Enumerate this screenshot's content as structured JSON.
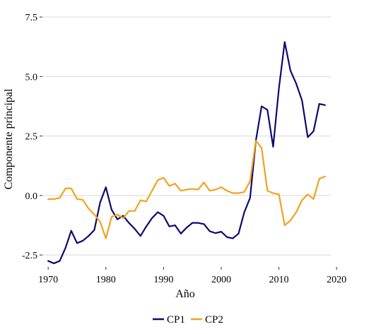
{
  "chart_data": {
    "type": "line",
    "title": "",
    "xlabel": "Año",
    "ylabel": "Componente principal",
    "xlim": [
      1969,
      2019
    ],
    "ylim": [
      -3.0,
      7.8
    ],
    "xticks": [
      1970,
      1980,
      1990,
      2000,
      2010,
      2020
    ],
    "yticks": [
      -2.5,
      0.0,
      2.5,
      5.0,
      7.5
    ],
    "ytick_labels": [
      "-2.5",
      "0.0",
      "2.5",
      "5.0",
      "7.5"
    ],
    "grid": "horizontal",
    "legend_position": "bottom",
    "x": [
      1970,
      1971,
      1972,
      1973,
      1974,
      1975,
      1976,
      1977,
      1978,
      1979,
      1980,
      1981,
      1982,
      1983,
      1984,
      1985,
      1986,
      1987,
      1988,
      1989,
      1990,
      1991,
      1992,
      1993,
      1994,
      1995,
      1996,
      1997,
      1998,
      1999,
      2000,
      2001,
      2002,
      2003,
      2004,
      2005,
      2006,
      2007,
      2008,
      2009,
      2010,
      2011,
      2012,
      2013,
      2014,
      2015,
      2016,
      2017,
      2018
    ],
    "series": [
      {
        "name": "CP1",
        "color": "#0d0a6e",
        "values": [
          -2.75,
          -2.85,
          -2.75,
          -2.2,
          -1.48,
          -2.0,
          -1.9,
          -1.7,
          -1.45,
          -0.3,
          0.35,
          -0.6,
          -1.0,
          -0.85,
          -1.15,
          -1.4,
          -1.7,
          -1.3,
          -0.95,
          -0.7,
          -0.85,
          -1.3,
          -1.25,
          -1.6,
          -1.35,
          -1.15,
          -1.15,
          -1.2,
          -1.5,
          -1.58,
          -1.52,
          -1.75,
          -1.8,
          -1.6,
          -0.7,
          -0.1,
          2.3,
          3.75,
          3.6,
          2.05,
          4.5,
          6.45,
          5.25,
          4.7,
          4.0,
          2.45,
          2.7,
          3.85,
          3.8
        ]
      },
      {
        "name": "CP2",
        "color": "#f2a21e",
        "values": [
          -0.15,
          -0.15,
          -0.1,
          0.3,
          0.3,
          -0.15,
          -0.18,
          -0.55,
          -0.8,
          -1.1,
          -1.8,
          -0.9,
          -0.8,
          -0.95,
          -0.65,
          -0.65,
          -0.2,
          -0.25,
          0.2,
          0.65,
          0.75,
          0.4,
          0.5,
          0.2,
          0.25,
          0.28,
          0.25,
          0.55,
          0.2,
          0.25,
          0.35,
          0.2,
          0.1,
          0.1,
          0.15,
          0.6,
          2.3,
          2.0,
          0.2,
          0.1,
          0.05,
          -1.25,
          -1.05,
          -0.7,
          -0.2,
          0.05,
          -0.15,
          0.7,
          0.8
        ]
      }
    ]
  }
}
